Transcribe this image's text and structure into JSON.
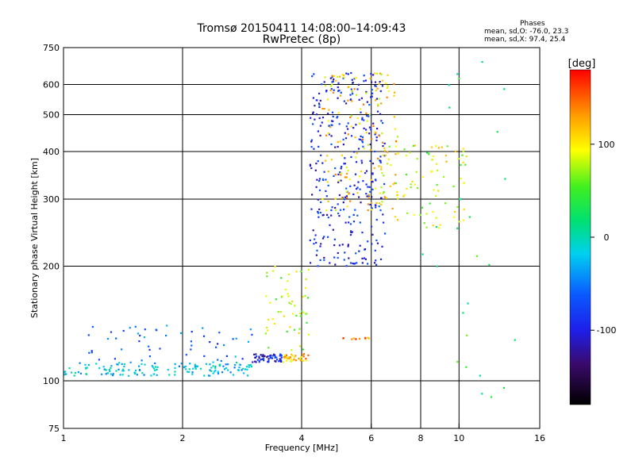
{
  "chart_data": {
    "type": "scatter",
    "title": "Tromsø 20150411 14:08:00–14:09:43",
    "subtitle": "RwPretec (8p)",
    "xlabel": "Frequency [MHz]",
    "ylabel": "Stationary phase Virtual Height [km]",
    "xscale": "log",
    "yscale": "log",
    "xlim": [
      1,
      16
    ],
    "ylim": [
      75,
      750
    ],
    "xticks": [
      1,
      2,
      4,
      6,
      8,
      10,
      16
    ],
    "xtick_labels": [
      "1",
      "2",
      "4",
      "6",
      "8",
      "10",
      "16"
    ],
    "yticks": [
      75,
      100,
      200,
      300,
      400,
      500,
      600,
      750
    ],
    "ytick_labels": [
      "75",
      "100",
      "200",
      "300",
      "400",
      "500",
      "600",
      "750"
    ],
    "grid": true,
    "phase_stats": {
      "title": "Phases",
      "line_o": "mean, sd,O: -76.0, 23.3",
      "line_x": "mean, sd,X:  97.4, 25.4"
    },
    "colorbar": {
      "label": "[deg]",
      "range": [
        -180,
        180
      ],
      "ticks": [
        100,
        0,
        -100
      ],
      "tick_labels": [
        "100",
        "0",
        "-100"
      ]
    },
    "clusters": [
      {
        "name": "low-band trace",
        "f": [
          1.0,
          3.0
        ],
        "h": [
          103,
          112
        ],
        "phase": -20
      },
      {
        "name": "low-band scatter",
        "f": [
          1.15,
          3.0
        ],
        "h": [
          110,
          140
        ],
        "phase": -60
      },
      {
        "name": "dense trace near 3.3 MHz",
        "f": [
          3.0,
          3.6
        ],
        "h": [
          112,
          118
        ],
        "phase": -95
      },
      {
        "name": "orange trace near 3.8 MHz",
        "f": [
          3.6,
          4.2
        ],
        "h": [
          112,
          118
        ],
        "phase": 120
      },
      {
        "name": "sporadic scatter 3.2-4.2 MHz",
        "f": [
          3.2,
          4.2
        ],
        "h": [
          120,
          200
        ],
        "phase": 80
      },
      {
        "name": "main F-layer echoes",
        "f": [
          4.2,
          6.5
        ],
        "h": [
          200,
          650
        ],
        "phase": -90
      },
      {
        "name": "F-layer X-mode",
        "f": [
          4.5,
          7.0
        ],
        "h": [
          280,
          650
        ],
        "phase": 110
      },
      {
        "name": "echo band near 5.5 MHz",
        "f": [
          5.0,
          6.0
        ],
        "h": [
          128,
          130
        ],
        "phase": 150
      },
      {
        "name": "spread 6-10 MHz",
        "f": [
          6.0,
          10.5
        ],
        "h": [
          250,
          420
        ],
        "phase": 90
      },
      {
        "name": "sparse high-frequency",
        "f": [
          8.0,
          14.0
        ],
        "h": [
          90,
          700
        ],
        "phase": 30
      }
    ]
  }
}
